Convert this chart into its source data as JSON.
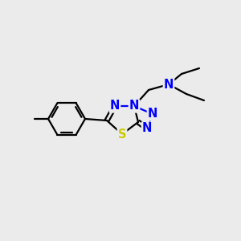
{
  "background_color": "#ebebeb",
  "atom_colors": {
    "N": "#0000FF",
    "S": "#CCCC00",
    "C": "#000000"
  },
  "figsize": [
    3.0,
    3.0
  ],
  "dpi": 100,
  "lw": 1.6,
  "fs": 10.5
}
